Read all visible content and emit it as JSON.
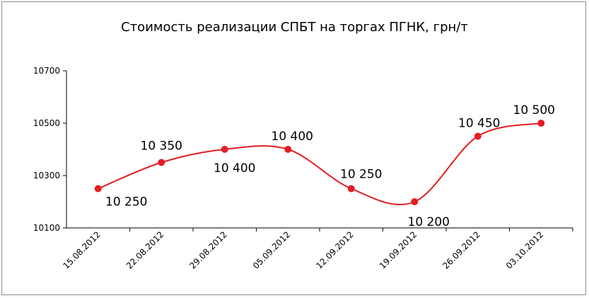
{
  "chart_data": {
    "type": "line",
    "title": "Стоимость реализации СПБТ на торгах ПГНК, грн/т",
    "xlabel": "",
    "ylabel": "",
    "categories": [
      "15.08.2012",
      "22.08.2012",
      "29.08.2012",
      "05.09.2012",
      "12.09.2012",
      "19.09.2012",
      "26.09.2012",
      "03.10.2012"
    ],
    "series": [
      {
        "values": [
          10250,
          10350,
          10400,
          10400,
          10250,
          10200,
          10450,
          10500
        ],
        "data_labels": [
          "10 250",
          "10 350",
          "10 400",
          "10 400",
          "10 250",
          "10 200",
          "10 450",
          "10 500"
        ]
      }
    ],
    "ylim": [
      10100,
      10700
    ],
    "yticks": [
      10100,
      10300,
      10500,
      10700
    ],
    "ytick_labels": [
      "10100",
      "10300",
      "10500",
      "10700"
    ],
    "grid": false,
    "smooth": true,
    "line_color": "#e31e24",
    "marker_color": "#e31e24"
  }
}
